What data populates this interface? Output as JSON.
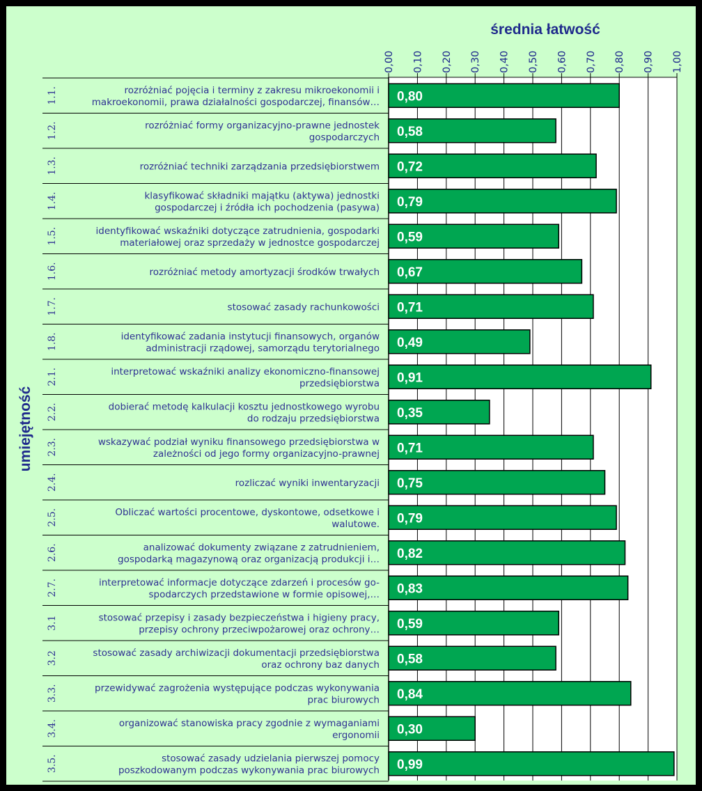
{
  "chart_data": {
    "type": "bar",
    "orientation": "horizontal",
    "title": "",
    "xlabel": "średnia łatwość",
    "ylabel": "umiejętność",
    "xlim": [
      0,
      1
    ],
    "x_ticks": [
      "0,00",
      "0,10",
      "0,20",
      "0,30",
      "0,40",
      "0,50",
      "0,60",
      "0,70",
      "0,80",
      "0,90",
      "1,00"
    ],
    "grid": "vertical",
    "legend": "none",
    "bar_color": "#00a651",
    "plot_background": "#ffffff",
    "chart_background": "#ccffcc",
    "text_color": "#2e3192",
    "categories": [
      {
        "code": "1.1.",
        "label": [
          "rozróżniać pojęcia i  terminy z zakresu mikroekonomii i",
          "makroekonomii, prawa działalności gospodarczej, finansów…"
        ],
        "value": 0.8,
        "value_label": "0,80"
      },
      {
        "code": "1.2.",
        "label": [
          "rozróżniać formy organizacyjno-prawne jednostek",
          "gospodarczych"
        ],
        "value": 0.58,
        "value_label": "0,58"
      },
      {
        "code": "1.3.",
        "label": [
          "rozróżniać techniki zarządzania przedsiębiorstwem"
        ],
        "value": 0.72,
        "value_label": "0,72"
      },
      {
        "code": "1.4.",
        "label": [
          "klasyfikować składniki majątku (aktywa) jednostki",
          "gospodarczej i źródła ich pochodzenia (pasywa)"
        ],
        "value": 0.79,
        "value_label": "0,79"
      },
      {
        "code": "1.5.",
        "label": [
          "identyfikować wskaźniki dotyczące zatrudnienia, gospodarki",
          "materiałowej oraz sprzedaży w jednostce gospodarczej"
        ],
        "value": 0.59,
        "value_label": "0,59"
      },
      {
        "code": "1.6.",
        "label": [
          "rozróżniać metody amortyzacji środków trwałych"
        ],
        "value": 0.67,
        "value_label": "0,67"
      },
      {
        "code": "1.7.",
        "label": [
          "stosować zasady rachunkowości"
        ],
        "value": 0.71,
        "value_label": "0,71"
      },
      {
        "code": "1.8.",
        "label": [
          "identyfikować zadania instytucji finansowych, organów",
          "administracji rządowej, samorządu terytorialnego"
        ],
        "value": 0.49,
        "value_label": "0,49"
      },
      {
        "code": "2.1.",
        "label": [
          "interpretować wskaźniki analizy ekonomiczno-finansowej",
          "przedsiębiorstwa"
        ],
        "value": 0.91,
        "value_label": "0,91"
      },
      {
        "code": "2.2.",
        "label": [
          "dobierać metodę kalkulacji kosztu jednostkowego wyrobu",
          "do rodzaju przedsiębiorstwa"
        ],
        "value": 0.35,
        "value_label": "0,35"
      },
      {
        "code": "2.3.",
        "label": [
          "wskazywać podział wyniku finansowego przedsiębiorstwa w",
          "zależności od jego formy organizacyjno-prawnej"
        ],
        "value": 0.71,
        "value_label": "0,71"
      },
      {
        "code": "2.4.",
        "label": [
          "rozliczać wyniki inwentaryzacji"
        ],
        "value": 0.75,
        "value_label": "0,75"
      },
      {
        "code": "2.5.",
        "label": [
          "Obliczać wartości procentowe, dyskontowe, odsetkowe i",
          "walutowe."
        ],
        "value": 0.79,
        "value_label": "0,79"
      },
      {
        "code": "2.6.",
        "label": [
          "analizować dokumenty związane z  zatrudnieniem,",
          "gospodarką magazynową oraz organizacją produkcji i…"
        ],
        "value": 0.82,
        "value_label": "0,82"
      },
      {
        "code": "2.7.",
        "label": [
          "interpretować informacje dotyczące zdarzeń i procesów go-",
          "spodarczych przedstawione w formie opisowej,…"
        ],
        "value": 0.83,
        "value_label": "0,83"
      },
      {
        "code": "3.1",
        "label": [
          "stosować przepisy  i zasady bezpieczeństwa i higieny pracy,",
          "przepisy ochrony przeciwpożarowej oraz ochrony…"
        ],
        "value": 0.59,
        "value_label": "0,59"
      },
      {
        "code": "3.2",
        "label": [
          "stosować zasady archiwizacji dokumentacji przedsiębiorstwa",
          "oraz ochrony baz danych"
        ],
        "value": 0.58,
        "value_label": "0,58"
      },
      {
        "code": "3.3.",
        "label": [
          "przewidywać zagrożenia występujące podczas wykonywania",
          "prac biurowych"
        ],
        "value": 0.84,
        "value_label": "0,84"
      },
      {
        "code": "3.4.",
        "label": [
          "organizować stanowiska pracy zgodnie z wymaganiami",
          "ergonomii"
        ],
        "value": 0.3,
        "value_label": "0,30"
      },
      {
        "code": "3.5.",
        "label": [
          "stosować zasady udzielania pierwszej pomocy",
          "poszkodowanym podczas wykonywania prac biurowych"
        ],
        "value": 0.99,
        "value_label": "0,99"
      }
    ]
  }
}
